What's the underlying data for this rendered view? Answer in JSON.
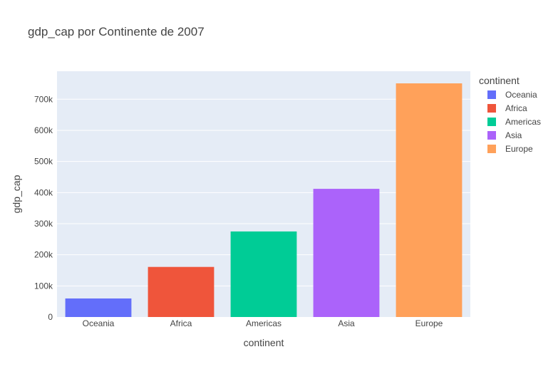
{
  "chart_data": {
    "type": "bar",
    "title": "gdp_cap por Continente de 2007",
    "xlabel": "continent",
    "ylabel": "gdp_cap",
    "categories": [
      "Oceania",
      "Africa",
      "Americas",
      "Asia",
      "Europe"
    ],
    "values": [
      59600,
      161000,
      275000,
      412000,
      751000
    ],
    "colors": [
      "#636efa",
      "#EF553B",
      "#00cc96",
      "#ab63fa",
      "#FFA15A"
    ],
    "ylim": [
      0,
      790000
    ],
    "yticks": [
      0,
      100000,
      200000,
      300000,
      400000,
      500000,
      600000,
      700000
    ],
    "ytick_labels": [
      "0",
      "100k",
      "200k",
      "300k",
      "400k",
      "500k",
      "600k",
      "700k"
    ],
    "grid": true,
    "legend_title": "continent",
    "legend_placement": "top-right",
    "plot_background": "#e5ecf6"
  }
}
